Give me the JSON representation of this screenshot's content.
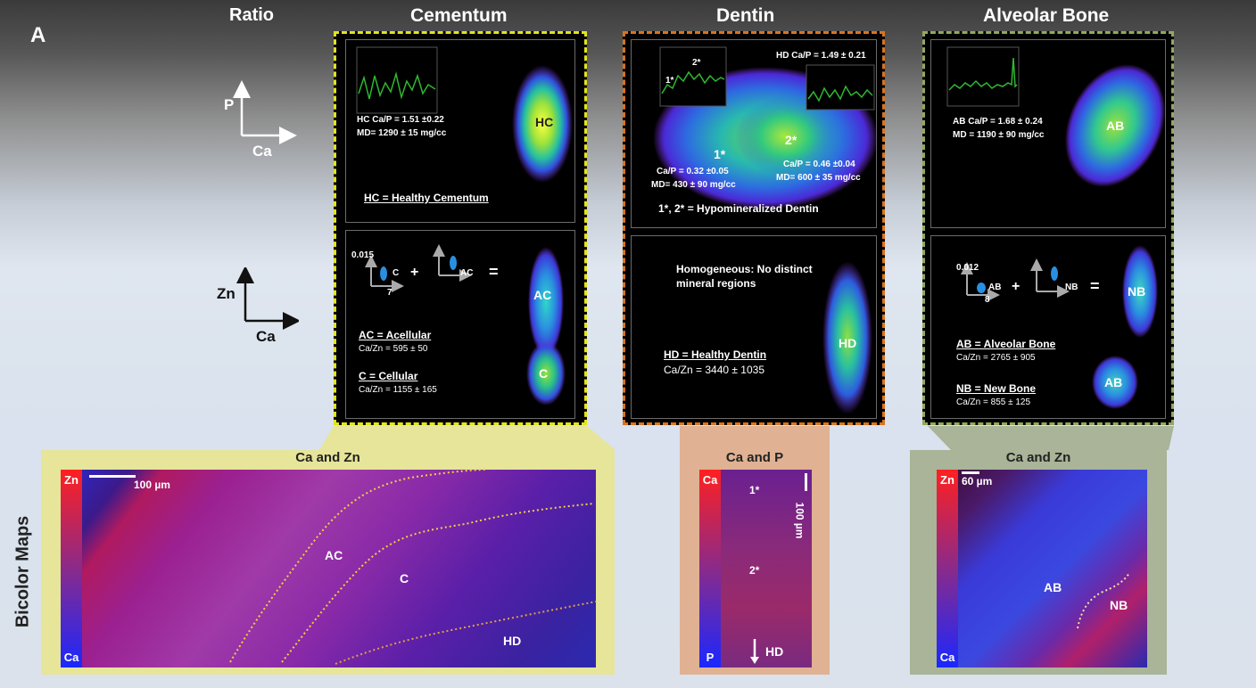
{
  "panel_letter": "A",
  "headers": {
    "ratio": "Ratio",
    "cementum": "Cementum",
    "dentin": "Dentin",
    "bone": "Alveolar Bone"
  },
  "axes": {
    "p_ca": {
      "y": "P",
      "x": "Ca"
    },
    "zn_ca": {
      "y": "Zn",
      "x": "Ca"
    }
  },
  "side_label": "Bicolor Maps",
  "cementum": {
    "top": {
      "label": "HC",
      "ratio_line": "HC Ca/P = 1.51 ±0.22",
      "md_line": "MD= 1290 ± 15 mg/cc",
      "legend": "HC = Healthy Cementum"
    },
    "bottom": {
      "mini_ymax": "0.015",
      "mini_x": "7",
      "mini_a": "C",
      "mini_b": "AC",
      "plus": "+",
      "equals": "=",
      "label_top": "AC",
      "label_bottom": "C",
      "legend_a": "AC = Acellular",
      "value_a": "Ca/Zn = 595 ± 50",
      "legend_b": "C = Cellular",
      "value_b": "Ca/Zn = 1155 ± 165"
    }
  },
  "dentin": {
    "top": {
      "hd_line": "HD Ca/P = 1.49 ± 0.21",
      "inset_a": "2*",
      "inset_b": "1*",
      "label1": "1*",
      "label2": "2*",
      "r1": "Ca/P = 0.32 ±0.05",
      "md1": "MD= 430 ± 90 mg/cc",
      "r2": "Ca/P = 0.46 ±0.04",
      "md2": "MD= 600 ± 35 mg/cc",
      "legend": "1*, 2*  = Hypomineralized Dentin"
    },
    "bottom": {
      "note": "Homogeneous: No distinct mineral regions",
      "label": "HD",
      "legend": "HD = Healthy Dentin",
      "value": "Ca/Zn = 3440 ± 1035"
    }
  },
  "bone": {
    "top": {
      "label": "AB",
      "ratio_line": "AB Ca/P = 1.68 ± 0.24",
      "md_line": "MD = 1190 ± 90 mg/cc"
    },
    "bottom": {
      "mini_ymax": "0.012",
      "mini_x": "8",
      "mini_a": "AB",
      "mini_b": "NB",
      "plus": "+",
      "equals": "=",
      "label_top": "NB",
      "label_bottom": "AB",
      "legend_a": "AB = Alveolar Bone",
      "value_a": "Ca/Zn = 2765 ± 905",
      "legend_b": "NB = New Bone",
      "value_b": "Ca/Zn = 855 ± 125"
    }
  },
  "maps": {
    "cementum": {
      "title": "Ca and Zn",
      "bar_top": "Zn",
      "bar_bottom": "Ca",
      "scale": "100 µm",
      "labels": [
        "AC",
        "C",
        "HD"
      ]
    },
    "dentin": {
      "title": "Ca and P",
      "bar_top": "Ca",
      "bar_bottom": "P",
      "scale": "100 µm",
      "labels": [
        "1*",
        "2*",
        "HD"
      ]
    },
    "bone": {
      "title": "Ca and Zn",
      "bar_top": "Zn",
      "bar_bottom": "Ca",
      "scale": "60 µm",
      "labels": [
        "AB",
        "NB"
      ]
    }
  },
  "colors": {
    "cementum_border": "#e3e31e",
    "dentin_border": "#d9741f",
    "bone_border": "#93a85c",
    "cementum_map_bg": "#e6e59a",
    "dentin_map_bg": "#e0b193",
    "bone_map_bg": "#a9b498"
  }
}
